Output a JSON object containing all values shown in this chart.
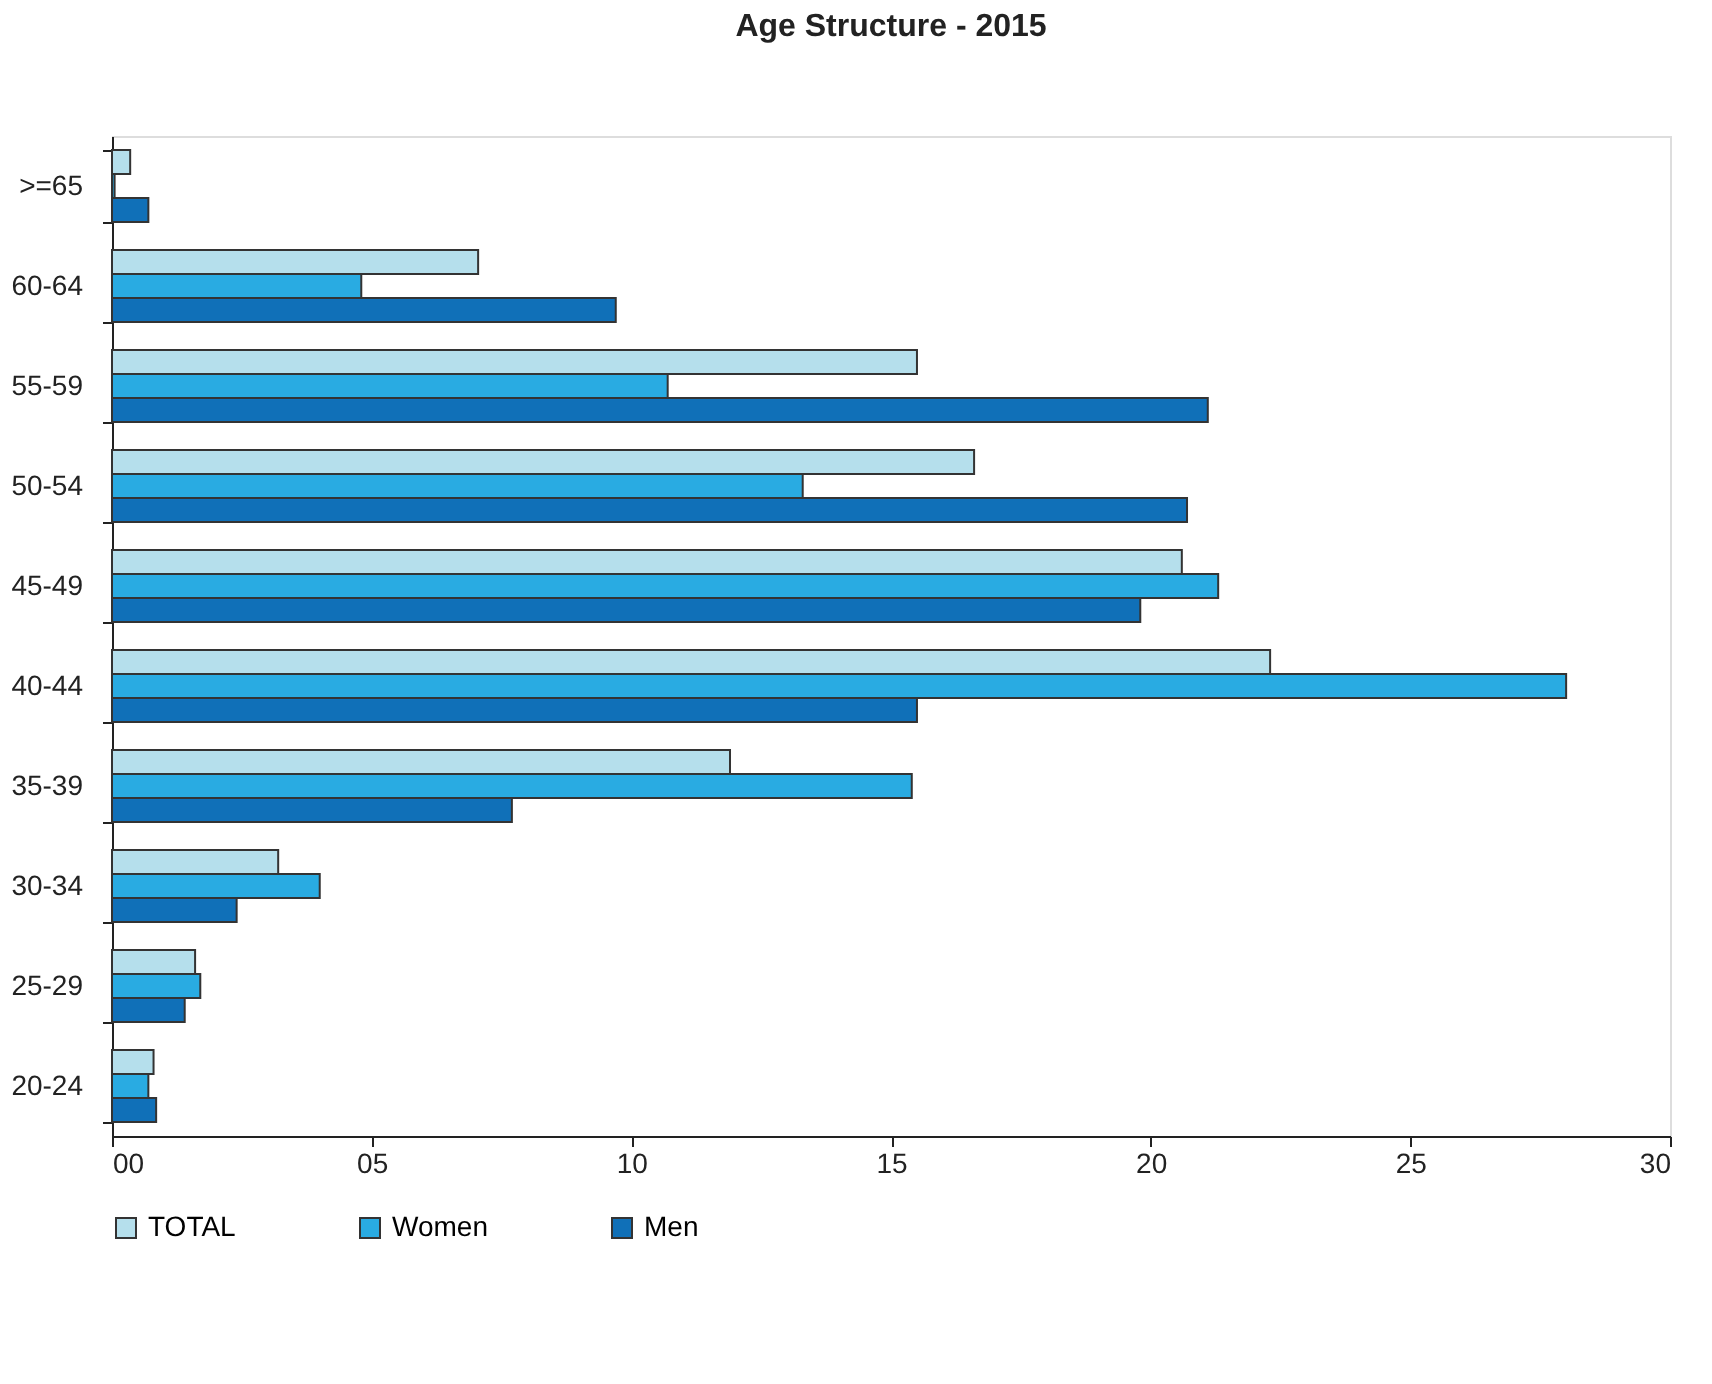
{
  "chart_data": {
    "type": "bar",
    "orientation": "horizontal",
    "title": "Age Structure  - 2015",
    "categories": [
      ">=65",
      "60-64",
      "55-59",
      "50-54",
      "45-49",
      "40-44",
      "35-39",
      "30-34",
      "25-29",
      "20-24"
    ],
    "series": [
      {
        "name": "TOTAL",
        "color": "#b5dfec",
        "values": [
          0.35,
          7.05,
          15.5,
          16.6,
          20.6,
          22.3,
          11.9,
          3.2,
          1.6,
          0.8
        ]
      },
      {
        "name": "Women",
        "color": "#29abe2",
        "values": [
          0.05,
          4.8,
          10.7,
          13.3,
          21.3,
          28.0,
          15.4,
          4.0,
          1.7,
          0.7
        ]
      },
      {
        "name": "Men",
        "color": "#1070b8",
        "values": [
          0.7,
          9.7,
          21.1,
          20.7,
          19.8,
          15.5,
          7.7,
          2.4,
          1.4,
          0.85
        ]
      }
    ],
    "xlim": [
      0,
      30
    ],
    "xticks": [
      {
        "value": 0,
        "label": "00"
      },
      {
        "value": 5,
        "label": "05"
      },
      10,
      15,
      20,
      25,
      30
    ],
    "grid": false,
    "legend": "bottom"
  }
}
